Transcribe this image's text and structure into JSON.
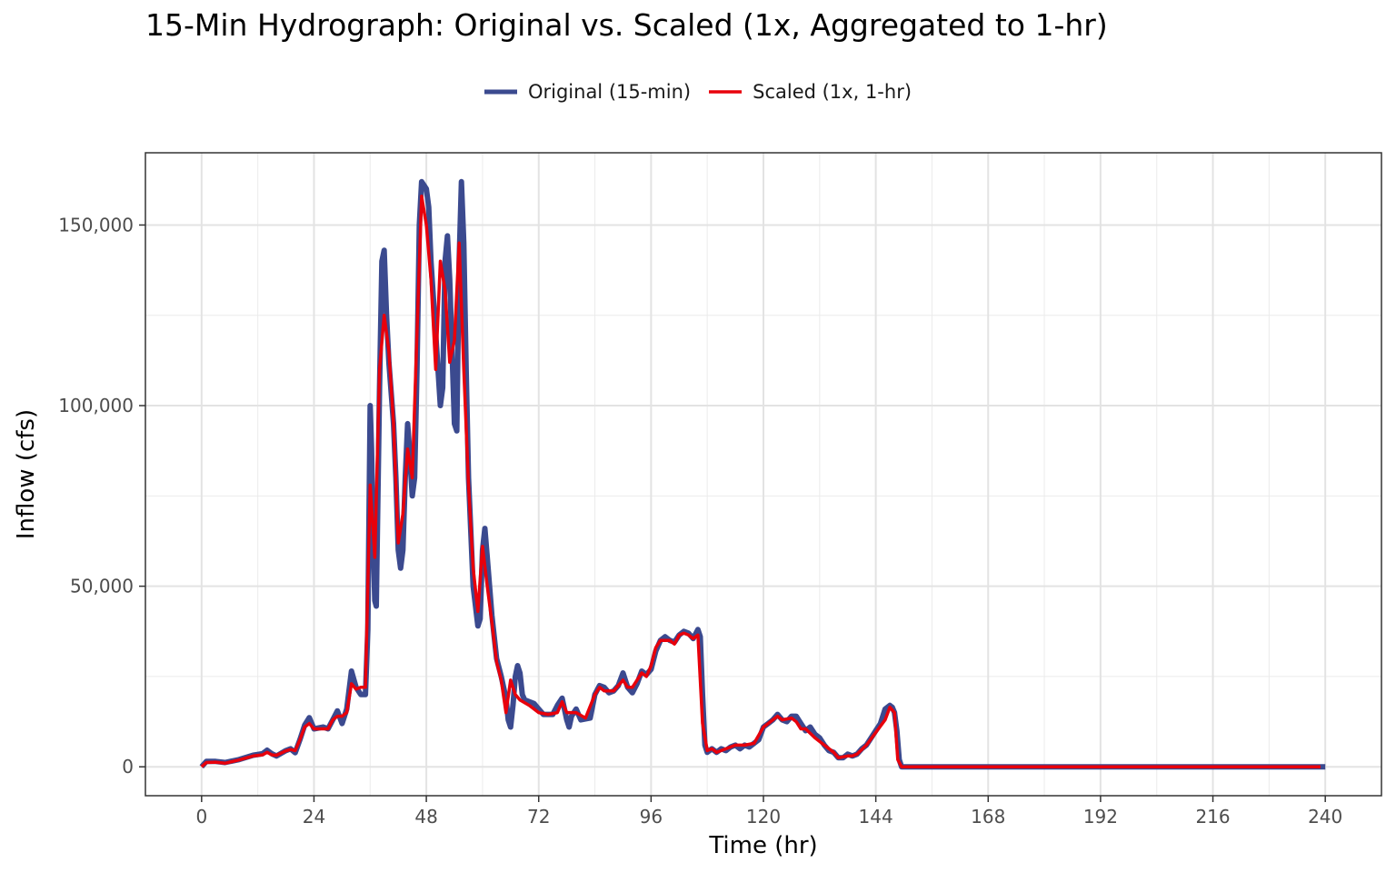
{
  "chart_data": {
    "type": "line",
    "title": "15-Min Hydrograph: Original vs. Scaled (1x, Aggregated to 1-hr)",
    "xlabel": "Time (hr)",
    "ylabel": "Inflow (cfs)",
    "xlim": [
      -12,
      252
    ],
    "ylim": [
      -8000,
      170000
    ],
    "x_ticks": [
      0,
      24,
      48,
      72,
      96,
      120,
      144,
      168,
      192,
      216,
      240
    ],
    "x_tick_labels": [
      "0",
      "24",
      "48",
      "72",
      "96",
      "120",
      "144",
      "168",
      "192",
      "216",
      "240"
    ],
    "y_ticks": [
      0,
      50000,
      100000,
      150000
    ],
    "y_tick_labels": [
      "0",
      "50,000",
      "100,000",
      "150,000"
    ],
    "grid": true,
    "legend_position": "top",
    "series": [
      {
        "name": "Original (15-min)",
        "color": "#3b4a8f",
        "points": [
          [
            0,
            0
          ],
          [
            1,
            1500
          ],
          [
            3,
            1500
          ],
          [
            5,
            1200
          ],
          [
            8,
            2000
          ],
          [
            11,
            3200
          ],
          [
            13,
            3600
          ],
          [
            14,
            4600
          ],
          [
            15,
            3600
          ],
          [
            16,
            3000
          ],
          [
            18,
            4500
          ],
          [
            19,
            5000
          ],
          [
            20,
            3900
          ],
          [
            21,
            7500
          ],
          [
            22,
            11500
          ],
          [
            23,
            13600
          ],
          [
            24,
            10500
          ],
          [
            26,
            11000
          ],
          [
            27,
            10500
          ],
          [
            28,
            13000
          ],
          [
            29,
            15500
          ],
          [
            30,
            12000
          ],
          [
            31,
            16000
          ],
          [
            32,
            26500
          ],
          [
            33,
            22000
          ],
          [
            34,
            20000
          ],
          [
            35,
            20000
          ],
          [
            35.5,
            38000
          ],
          [
            36,
            100000
          ],
          [
            36.3,
            88000
          ],
          [
            36.7,
            60000
          ],
          [
            37,
            46000
          ],
          [
            37.3,
            44500
          ],
          [
            38,
            105000
          ],
          [
            38.5,
            140000
          ],
          [
            39,
            143000
          ],
          [
            39.5,
            125000
          ],
          [
            40,
            112000
          ],
          [
            41,
            95000
          ],
          [
            41.5,
            80000
          ],
          [
            42,
            60000
          ],
          [
            42.5,
            55000
          ],
          [
            43,
            60000
          ],
          [
            43.5,
            80000
          ],
          [
            44,
            95000
          ],
          [
            44.3,
            90000
          ],
          [
            45,
            75000
          ],
          [
            45.5,
            80000
          ],
          [
            46,
            110000
          ],
          [
            46.5,
            150000
          ],
          [
            47,
            162000
          ],
          [
            48,
            160000
          ],
          [
            48.5,
            155000
          ],
          [
            49,
            140000
          ],
          [
            50,
            120000
          ],
          [
            51,
            100000
          ],
          [
            51.5,
            105000
          ],
          [
            52,
            140000
          ],
          [
            52.5,
            147000
          ],
          [
            53,
            135000
          ],
          [
            54,
            95000
          ],
          [
            54.5,
            93000
          ],
          [
            55,
            140000
          ],
          [
            55.5,
            162000
          ],
          [
            56,
            145000
          ],
          [
            56.5,
            110000
          ],
          [
            57,
            80000
          ],
          [
            58,
            50000
          ],
          [
            59,
            39000
          ],
          [
            59.5,
            41000
          ],
          [
            60,
            60000
          ],
          [
            60.5,
            66000
          ],
          [
            61,
            58000
          ],
          [
            62,
            42000
          ],
          [
            63,
            30000
          ],
          [
            64,
            25000
          ],
          [
            65,
            19000
          ],
          [
            65.5,
            13000
          ],
          [
            66,
            11000
          ],
          [
            66.5,
            17000
          ],
          [
            67,
            25000
          ],
          [
            67.5,
            28000
          ],
          [
            68,
            26000
          ],
          [
            68.5,
            20000
          ],
          [
            69,
            18500
          ],
          [
            71,
            17500
          ],
          [
            72,
            16000
          ],
          [
            73,
            14500
          ],
          [
            75,
            14500
          ],
          [
            76,
            17000
          ],
          [
            77,
            19000
          ],
          [
            78,
            13000
          ],
          [
            78.5,
            11000
          ],
          [
            79,
            14000
          ],
          [
            80,
            16000
          ],
          [
            81,
            13000
          ],
          [
            83,
            13500
          ],
          [
            84,
            20000
          ],
          [
            85,
            22500
          ],
          [
            86,
            22000
          ],
          [
            87,
            20500
          ],
          [
            88,
            21000
          ],
          [
            89,
            22500
          ],
          [
            90,
            26000
          ],
          [
            91,
            22000
          ],
          [
            92,
            20500
          ],
          [
            93,
            23000
          ],
          [
            94,
            26500
          ],
          [
            95,
            25500
          ],
          [
            96,
            27000
          ],
          [
            97,
            32000
          ],
          [
            98,
            35000
          ],
          [
            99,
            36000
          ],
          [
            100,
            35000
          ],
          [
            101,
            34500
          ],
          [
            102,
            36500
          ],
          [
            103,
            37500
          ],
          [
            104,
            37000
          ],
          [
            105,
            35500
          ],
          [
            106,
            38000
          ],
          [
            106.5,
            36000
          ],
          [
            107,
            20000
          ],
          [
            107.5,
            6000
          ],
          [
            108,
            4000
          ],
          [
            109,
            5000
          ],
          [
            110,
            4000
          ],
          [
            111,
            5000
          ],
          [
            112,
            4500
          ],
          [
            113,
            5500
          ],
          [
            114,
            6000
          ],
          [
            115,
            5000
          ],
          [
            116,
            6000
          ],
          [
            117,
            5500
          ],
          [
            118,
            6500
          ],
          [
            119,
            7500
          ],
          [
            120,
            11000
          ],
          [
            121,
            12000
          ],
          [
            122,
            13000
          ],
          [
            123,
            14500
          ],
          [
            124,
            13000
          ],
          [
            125,
            12500
          ],
          [
            126,
            14000
          ],
          [
            127,
            14000
          ],
          [
            128,
            12000
          ],
          [
            129,
            10000
          ],
          [
            130,
            11000
          ],
          [
            131,
            9000
          ],
          [
            132,
            8000
          ],
          [
            133,
            6000
          ],
          [
            134,
            4500
          ],
          [
            135,
            4000
          ],
          [
            136,
            2500
          ],
          [
            137,
            2500
          ],
          [
            138,
            3500
          ],
          [
            139,
            3000
          ],
          [
            140,
            3500
          ],
          [
            141,
            5000
          ],
          [
            142,
            6000
          ],
          [
            143,
            8000
          ],
          [
            144,
            10000
          ],
          [
            145,
            12000
          ],
          [
            146,
            16000
          ],
          [
            147,
            17000
          ],
          [
            147.5,
            16500
          ],
          [
            148,
            15000
          ],
          [
            148.5,
            10000
          ],
          [
            149,
            2000
          ],
          [
            149.5,
            0
          ],
          [
            240,
            0
          ]
        ]
      },
      {
        "name": "Scaled (1x, 1-hr)",
        "color": "#e8000b",
        "points": [
          [
            0,
            0
          ],
          [
            1,
            1200
          ],
          [
            3,
            1300
          ],
          [
            5,
            1000
          ],
          [
            8,
            1900
          ],
          [
            11,
            3000
          ],
          [
            13,
            3300
          ],
          [
            14,
            4000
          ],
          [
            15,
            3300
          ],
          [
            16,
            3200
          ],
          [
            18,
            4400
          ],
          [
            19,
            4800
          ],
          [
            20,
            4500
          ],
          [
            21,
            7500
          ],
          [
            22,
            11000
          ],
          [
            23,
            12000
          ],
          [
            24,
            10500
          ],
          [
            26,
            10500
          ],
          [
            27,
            10500
          ],
          [
            28,
            13000
          ],
          [
            29,
            14000
          ],
          [
            30,
            14000
          ],
          [
            31,
            15000
          ],
          [
            32,
            23000
          ],
          [
            33,
            21500
          ],
          [
            34,
            22000
          ],
          [
            35,
            22000
          ],
          [
            36,
            78000
          ],
          [
            37,
            58000
          ],
          [
            38,
            110000
          ],
          [
            39,
            125000
          ],
          [
            40,
            115000
          ],
          [
            41,
            95000
          ],
          [
            42,
            62000
          ],
          [
            43,
            70000
          ],
          [
            44,
            88000
          ],
          [
            45,
            80000
          ],
          [
            46,
            120000
          ],
          [
            47,
            158000
          ],
          [
            48,
            150000
          ],
          [
            49,
            135000
          ],
          [
            50,
            110000
          ],
          [
            51,
            140000
          ],
          [
            52,
            132000
          ],
          [
            53,
            112000
          ],
          [
            54,
            118000
          ],
          [
            55,
            145000
          ],
          [
            56,
            110000
          ],
          [
            57,
            78000
          ],
          [
            58,
            55000
          ],
          [
            59,
            43000
          ],
          [
            60,
            61000
          ],
          [
            61,
            50000
          ],
          [
            62,
            40000
          ],
          [
            63,
            29000
          ],
          [
            64,
            24000
          ],
          [
            65,
            15000
          ],
          [
            66,
            24000
          ],
          [
            67,
            20000
          ],
          [
            68,
            18500
          ],
          [
            70,
            17000
          ],
          [
            72,
            15000
          ],
          [
            74,
            14500
          ],
          [
            76,
            15000
          ],
          [
            77,
            18000
          ],
          [
            78,
            15000
          ],
          [
            80,
            15000
          ],
          [
            82,
            13500
          ],
          [
            84,
            20000
          ],
          [
            85,
            22000
          ],
          [
            86,
            21000
          ],
          [
            88,
            21000
          ],
          [
            90,
            24000
          ],
          [
            91,
            22000
          ],
          [
            92,
            22000
          ],
          [
            94,
            26000
          ],
          [
            95,
            25000
          ],
          [
            96,
            28000
          ],
          [
            97,
            33000
          ],
          [
            98,
            35000
          ],
          [
            100,
            35000
          ],
          [
            101,
            34000
          ],
          [
            102,
            36500
          ],
          [
            103,
            37000
          ],
          [
            104,
            36500
          ],
          [
            105,
            35500
          ],
          [
            106,
            36500
          ],
          [
            107,
            12000
          ],
          [
            108,
            4500
          ],
          [
            109,
            5000
          ],
          [
            110,
            4000
          ],
          [
            112,
            5000
          ],
          [
            114,
            6000
          ],
          [
            116,
            6000
          ],
          [
            118,
            6500
          ],
          [
            120,
            11000
          ],
          [
            121,
            12000
          ],
          [
            122,
            13000
          ],
          [
            123,
            14000
          ],
          [
            124,
            13000
          ],
          [
            126,
            13500
          ],
          [
            127,
            12500
          ],
          [
            128,
            10500
          ],
          [
            129,
            10500
          ],
          [
            131,
            8000
          ],
          [
            133,
            6000
          ],
          [
            135,
            4000
          ],
          [
            136,
            2500
          ],
          [
            138,
            3000
          ],
          [
            139,
            3000
          ],
          [
            140,
            3500
          ],
          [
            142,
            6000
          ],
          [
            144,
            9500
          ],
          [
            146,
            13000
          ],
          [
            147,
            16500
          ],
          [
            148,
            15000
          ],
          [
            148.7,
            2000
          ],
          [
            149.5,
            0
          ],
          [
            239,
            0
          ]
        ]
      }
    ]
  }
}
